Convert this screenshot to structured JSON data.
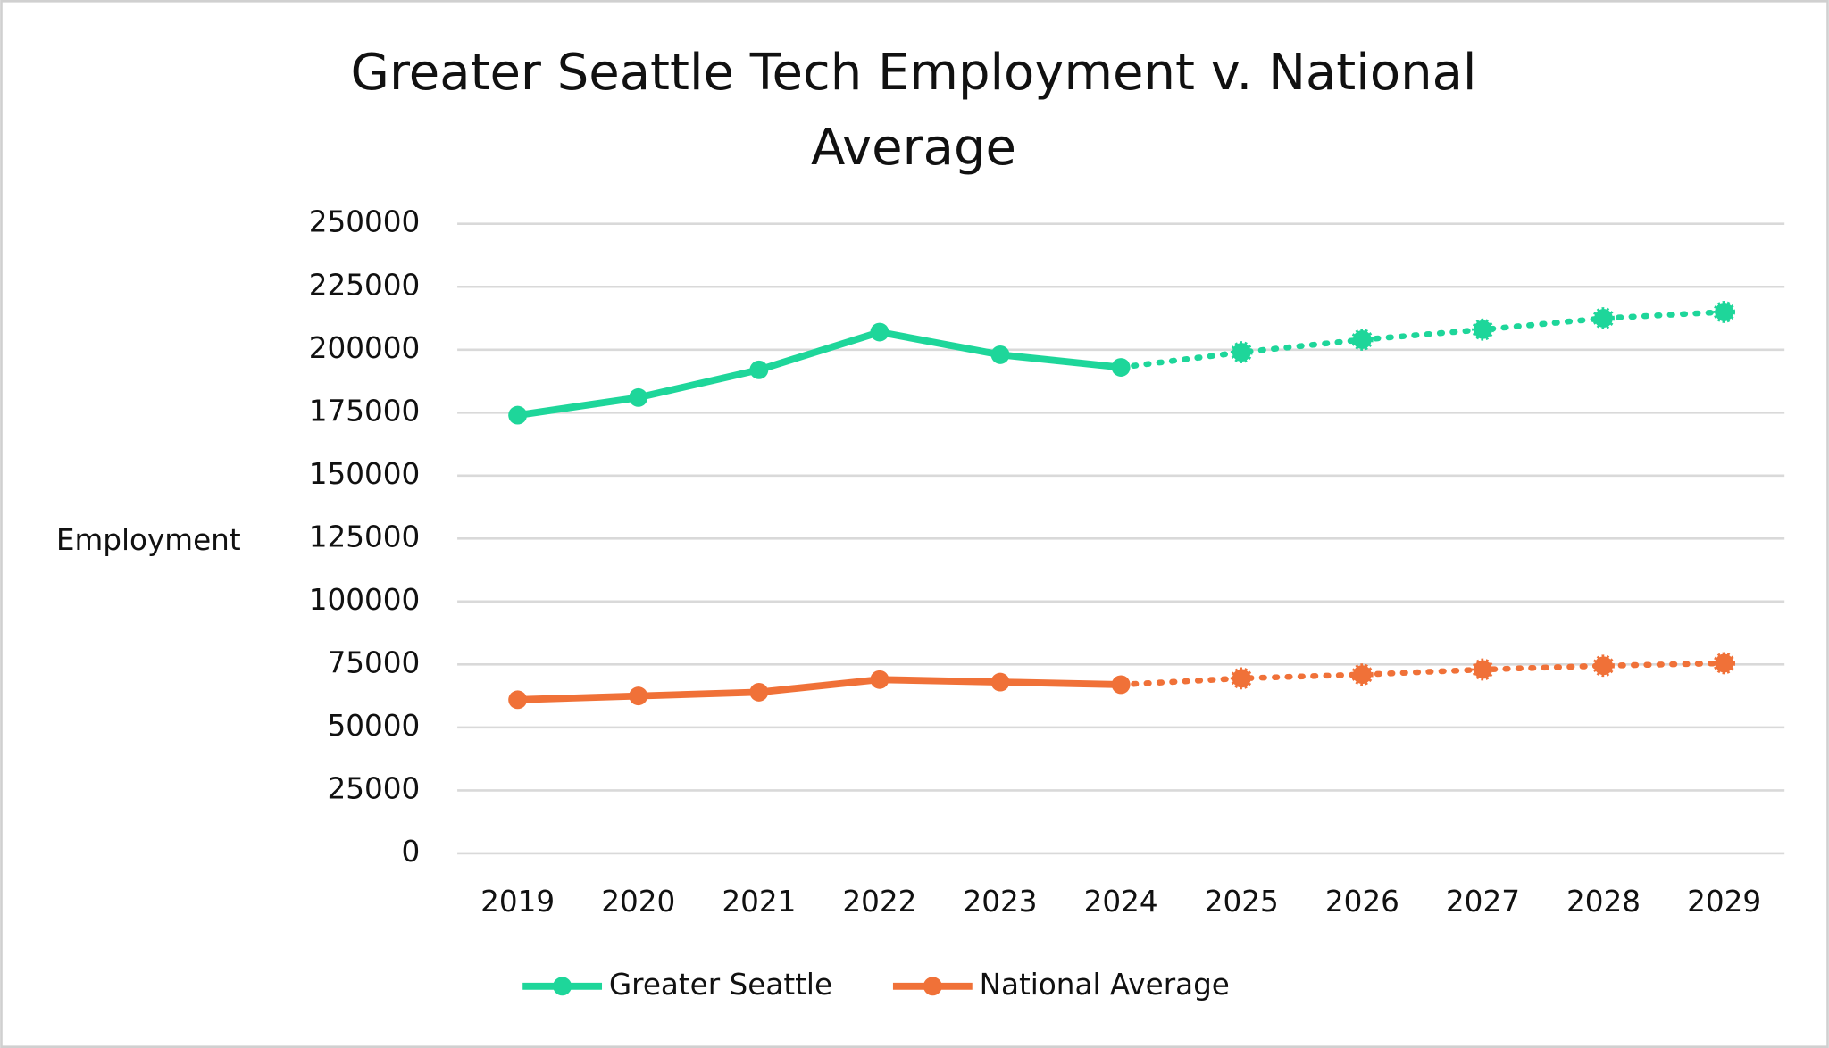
{
  "chart_data": {
    "type": "line",
    "title": "Greater Seattle Tech Employment v. National Average",
    "y_label": "Employment",
    "categories": [
      "2019",
      "2020",
      "2021",
      "2022",
      "2023",
      "2024",
      "2025",
      "2026",
      "2027",
      "2028",
      "2029"
    ],
    "dotted_from": "2024",
    "series": [
      {
        "name": "Greater Seattle",
        "color": "#1ed69a",
        "values": [
          174000,
          181000,
          192000,
          207000,
          198000,
          193000,
          199000,
          204000,
          208000,
          212500,
          215000
        ]
      },
      {
        "name": "National Average",
        "color": "#f07138",
        "values": [
          61000,
          62500,
          64000,
          69000,
          68000,
          67000,
          69500,
          71000,
          73000,
          74500,
          75500
        ]
      }
    ],
    "ylim": [
      0,
      250000
    ],
    "yticks": [
      0,
      25000,
      50000,
      75000,
      100000,
      125000,
      150000,
      175000,
      200000,
      225000,
      250000
    ],
    "grid": true
  }
}
